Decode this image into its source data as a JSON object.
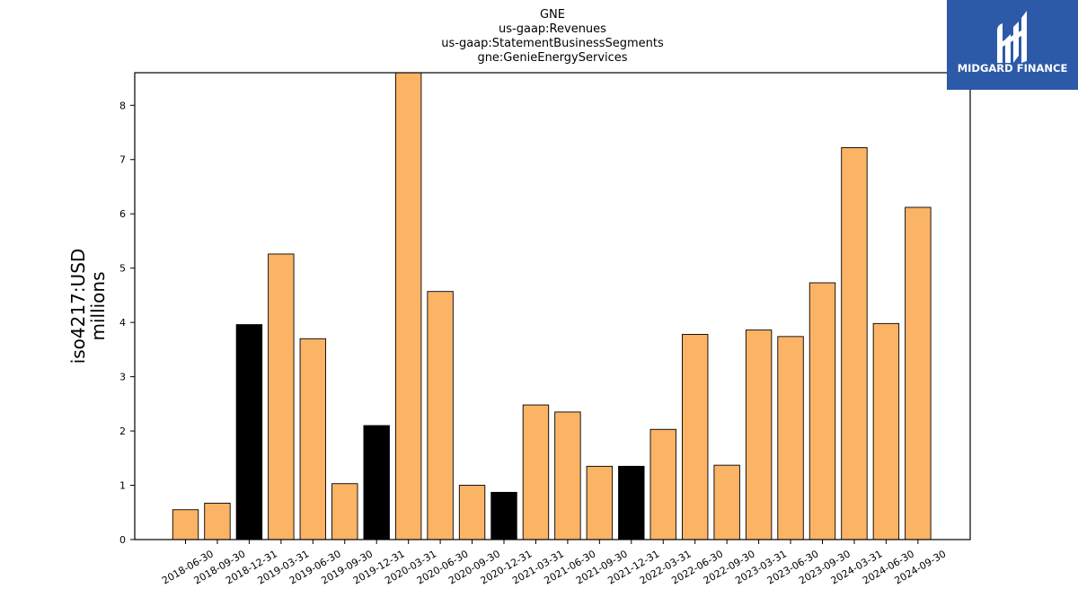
{
  "chart_data": {
    "type": "bar",
    "title_lines": [
      "GNE",
      "us-gaap:Revenues",
      "us-gaap:StatementBusinessSegments",
      "gne:GenieEnergyServices"
    ],
    "ylabel_lines": [
      "iso4217:USD",
      "millions"
    ],
    "xlabel": "",
    "ylim": [
      0,
      8.6
    ],
    "yticks": [
      0,
      1,
      2,
      3,
      4,
      5,
      6,
      7,
      8
    ],
    "grid": false,
    "categories": [
      "2018-06-30",
      "2018-09-30",
      "2018-12-31",
      "2019-03-31",
      "2019-06-30",
      "2019-09-30",
      "2019-12-31",
      "2020-03-31",
      "2020-06-30",
      "2020-09-30",
      "2020-12-31",
      "2021-03-31",
      "2021-06-30",
      "2021-09-30",
      "2021-12-31",
      "2022-03-31",
      "2022-06-30",
      "2022-09-30",
      "2023-03-31",
      "2023-06-30",
      "2023-09-30",
      "2024-03-31",
      "2024-06-30",
      "2024-09-30"
    ],
    "values": [
      0.55,
      0.67,
      3.96,
      5.26,
      3.7,
      1.03,
      2.1,
      8.6,
      4.57,
      1.0,
      0.87,
      2.48,
      2.35,
      1.35,
      1.35,
      2.03,
      3.78,
      1.37,
      3.86,
      3.74,
      4.73,
      7.22,
      3.98,
      6.12
    ],
    "highlight_categories": [
      "2018-12-31",
      "2019-12-31",
      "2020-12-31",
      "2021-12-31"
    ],
    "colors": {
      "bar": "#fbb366",
      "highlight": "#000000",
      "edge": "#000000"
    }
  },
  "logo": {
    "text": "MIDGARD FINANCE",
    "background": "#2d5aa8"
  }
}
